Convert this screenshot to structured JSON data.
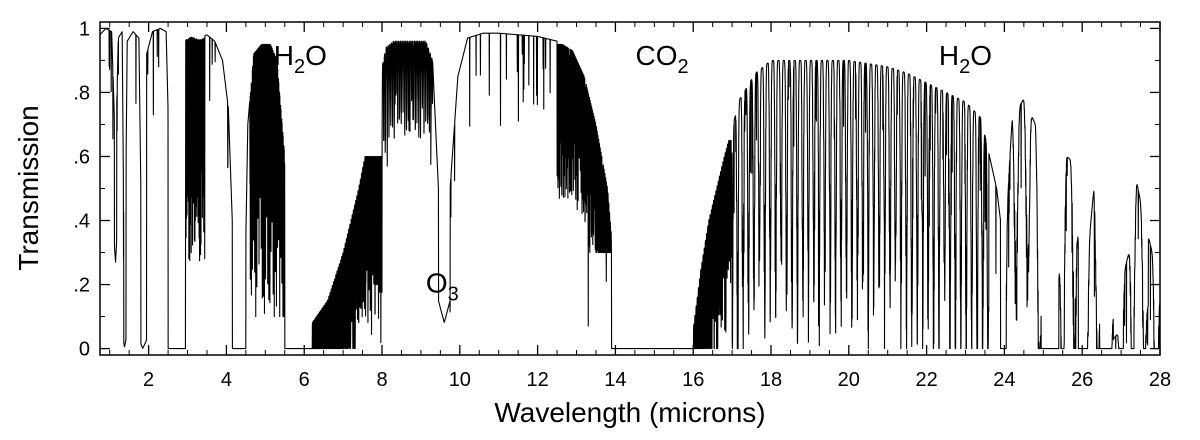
{
  "chart_data": {
    "type": "line",
    "xlabel": "Wavelength (microns)",
    "ylabel": "Transmission",
    "xlim": [
      0.75,
      28
    ],
    "ylim": [
      -0.02,
      1.02
    ],
    "grid": false,
    "line_color": "#000000",
    "x_ticks": [
      {
        "value": 2,
        "label": "2"
      },
      {
        "value": 4,
        "label": "4"
      },
      {
        "value": 6,
        "label": "6"
      },
      {
        "value": 8,
        "label": "8"
      },
      {
        "value": 10,
        "label": "10"
      },
      {
        "value": 12,
        "label": "12"
      },
      {
        "value": 14,
        "label": "14"
      },
      {
        "value": 16,
        "label": "16"
      },
      {
        "value": 18,
        "label": "18"
      },
      {
        "value": 20,
        "label": "20"
      },
      {
        "value": 22,
        "label": "22"
      },
      {
        "value": 24,
        "label": "24"
      },
      {
        "value": 26,
        "label": "26"
      },
      {
        "value": 28,
        "label": "28"
      }
    ],
    "y_ticks": [
      {
        "value": 0,
        "label": "0"
      },
      {
        "value": 0.2,
        "label": ".2"
      },
      {
        "value": 0.4,
        "label": ".4"
      },
      {
        "value": 0.6,
        "label": ".6"
      },
      {
        "value": 0.8,
        "label": ".8"
      },
      {
        "value": 1.0,
        "label": "1"
      }
    ],
    "annotations": [
      {
        "base": "H",
        "sub": "2",
        "tail": "O",
        "x": 5.9,
        "y": 0.885
      },
      {
        "base": "O",
        "sub": "3",
        "tail": "",
        "x": 9.55,
        "y": 0.175
      },
      {
        "base": "CO",
        "sub": "2",
        "tail": "",
        "x": 15.2,
        "y": 0.885
      },
      {
        "base": "H",
        "sub": "2",
        "tail": "O",
        "x": 23.0,
        "y": 0.885
      }
    ],
    "series": [
      {
        "envelope": [
          [
            0.75,
            0.98
          ],
          [
            0.9,
            1.0
          ],
          [
            1.05,
            0.99
          ],
          [
            1.15,
            0.6
          ],
          [
            1.22,
            0.97
          ],
          [
            1.32,
            0.99
          ],
          [
            1.38,
            0.1
          ],
          [
            1.45,
            0.96
          ],
          [
            1.6,
            0.99
          ],
          [
            1.75,
            0.97
          ],
          [
            1.85,
            0.03
          ],
          [
            1.95,
            0.92
          ],
          [
            2.1,
            0.99
          ],
          [
            2.3,
            1.0
          ],
          [
            2.45,
            0.99
          ],
          [
            2.55,
            0.5
          ],
          [
            2.62,
            0.0
          ],
          [
            2.75,
            0.0
          ],
          [
            2.85,
            0.3
          ],
          [
            2.95,
            0.97
          ],
          [
            3.1,
            0.98
          ],
          [
            3.3,
            0.97
          ],
          [
            3.5,
            0.98
          ],
          [
            3.7,
            0.96
          ],
          [
            3.9,
            0.9
          ],
          [
            4.05,
            0.75
          ],
          [
            4.15,
            0.4
          ],
          [
            4.22,
            0.0
          ],
          [
            4.45,
            0.0
          ],
          [
            4.55,
            0.7
          ],
          [
            4.7,
            0.92
          ],
          [
            4.9,
            0.95
          ],
          [
            5.1,
            0.96
          ],
          [
            5.3,
            0.9
          ],
          [
            5.5,
            0.6
          ],
          [
            5.6,
            0.1
          ],
          [
            5.75,
            0.0
          ],
          [
            6.05,
            0.0
          ],
          [
            6.2,
            0.08
          ],
          [
            6.6,
            0.15
          ],
          [
            7.0,
            0.3
          ],
          [
            7.4,
            0.5
          ],
          [
            7.8,
            0.75
          ],
          [
            8.1,
            0.94
          ],
          [
            8.4,
            0.97
          ],
          [
            8.8,
            0.96
          ],
          [
            9.1,
            0.97
          ],
          [
            9.3,
            0.9
          ],
          [
            9.45,
            0.5
          ],
          [
            9.6,
            0.27
          ],
          [
            9.75,
            0.5
          ],
          [
            9.95,
            0.85
          ],
          [
            10.2,
            0.97
          ],
          [
            10.6,
            0.985
          ],
          [
            11.0,
            0.985
          ],
          [
            11.5,
            0.98
          ],
          [
            12.0,
            0.975
          ],
          [
            12.5,
            0.96
          ],
          [
            12.9,
            0.93
          ],
          [
            13.2,
            0.85
          ],
          [
            13.5,
            0.7
          ],
          [
            13.8,
            0.5
          ],
          [
            14.0,
            0.2
          ],
          [
            14.2,
            0.03
          ],
          [
            14.4,
            0.0
          ],
          [
            15.8,
            0.0
          ],
          [
            16.0,
            0.06
          ],
          [
            16.2,
            0.25
          ],
          [
            16.4,
            0.4
          ],
          [
            16.8,
            0.6
          ],
          [
            17.2,
            0.78
          ],
          [
            17.6,
            0.86
          ],
          [
            18.0,
            0.9
          ],
          [
            18.5,
            0.92
          ],
          [
            19.0,
            0.91
          ],
          [
            19.5,
            0.9
          ],
          [
            20.0,
            0.9
          ],
          [
            20.5,
            0.89
          ],
          [
            21.0,
            0.88
          ],
          [
            21.5,
            0.86
          ],
          [
            22.0,
            0.83
          ],
          [
            22.5,
            0.8
          ],
          [
            23.0,
            0.77
          ],
          [
            23.4,
            0.72
          ],
          [
            23.8,
            0.5
          ],
          [
            24.0,
            0.3
          ],
          [
            24.2,
            0.72
          ],
          [
            24.5,
            0.78
          ],
          [
            24.8,
            0.7
          ],
          [
            25.0,
            0.2
          ],
          [
            25.3,
            0.05
          ],
          [
            25.6,
            0.6
          ],
          [
            25.8,
            0.58
          ],
          [
            26.0,
            0.1
          ],
          [
            26.3,
            0.5
          ],
          [
            26.5,
            0.3
          ],
          [
            26.8,
            0.1
          ],
          [
            27.0,
            0.2
          ],
          [
            27.2,
            0.3
          ],
          [
            27.4,
            0.52
          ],
          [
            27.6,
            0.4
          ],
          [
            27.8,
            0.3
          ],
          [
            28.0,
            0.15
          ]
        ],
        "absorption_bands": [
          [
            1.12,
            1.18,
            0.55
          ],
          [
            1.36,
            1.42,
            0.95
          ],
          [
            1.8,
            1.95,
            0.97
          ],
          [
            2.5,
            2.95,
            1.0
          ],
          [
            4.15,
            4.5,
            1.0
          ],
          [
            5.5,
            6.2,
            1.0
          ],
          [
            9.45,
            9.75,
            0.7
          ],
          [
            13.9,
            16.0,
            1.0
          ],
          [
            23.9,
            24.05,
            1.0
          ],
          [
            24.95,
            25.4,
            1.0
          ],
          [
            25.9,
            26.1,
            1.0
          ],
          [
            26.45,
            26.65,
            1.0
          ],
          [
            26.8,
            27.05,
            0.7
          ],
          [
            27.6,
            27.7,
            0.6
          ]
        ],
        "comb_ranges": [
          {
            "x": [
              2.92,
              3.45
            ],
            "period": 0.006,
            "min": 0.25,
            "max": 0.98
          },
          {
            "x": [
              4.6,
              5.5
            ],
            "period": 0.007,
            "min": 0.1,
            "max": 0.95
          },
          {
            "x": [
              6.2,
              8.0
            ],
            "period": 0.03,
            "min": 0.0,
            "max": 0.6
          },
          {
            "x": [
              8.0,
              9.3
            ],
            "period": 0.045,
            "min": 0.65,
            "max": 0.96
          },
          {
            "x": [
              12.5,
              14.0
            ],
            "period": 0.02,
            "min": 0.3,
            "max": 0.95
          },
          {
            "x": [
              16.0,
              17.0
            ],
            "period": 0.03,
            "min": 0.0,
            "max": 0.65
          },
          {
            "x": [
              17.0,
              23.6
            ],
            "period": 0.14,
            "min": 0.0,
            "max": 0.9
          },
          {
            "x": [
              24.0,
              28.0
            ],
            "period": 0.3,
            "min": 0.0,
            "max": 0.78
          }
        ]
      }
    ]
  }
}
